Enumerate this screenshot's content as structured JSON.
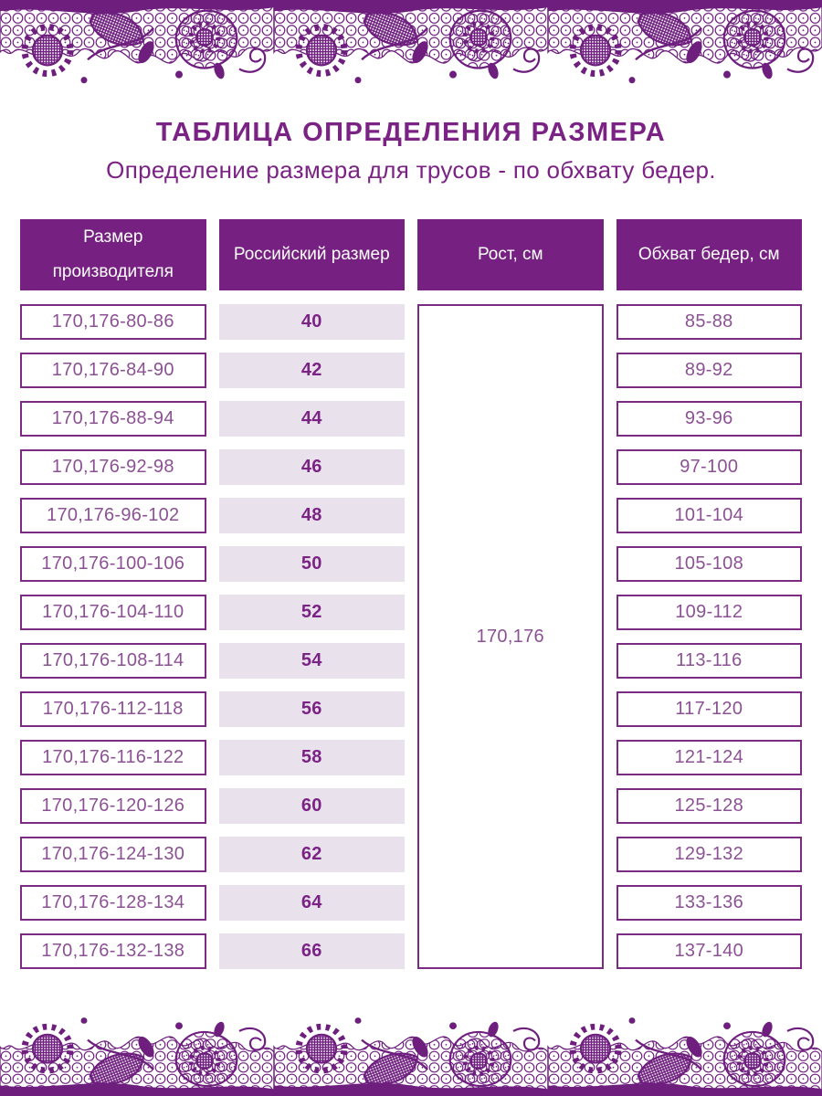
{
  "page": {
    "title": "ТАБЛИЦА ОПРЕДЕЛЕНИЯ РАЗМЕРА",
    "subtitle": "Определение размера для трусов - по обхвату бедер."
  },
  "table": {
    "headers": {
      "manufacturer": "Размер производителя",
      "russian": "Российский размер",
      "height": "Рост, см",
      "hips": "Обхват бедер, см"
    },
    "height_value": "170,176",
    "rows": [
      {
        "manufacturer_size": "170,176-80-86",
        "russian_size": "40",
        "hip_girth": "85-88"
      },
      {
        "manufacturer_size": "170,176-84-90",
        "russian_size": "42",
        "hip_girth": "89-92"
      },
      {
        "manufacturer_size": "170,176-88-94",
        "russian_size": "44",
        "hip_girth": "93-96"
      },
      {
        "manufacturer_size": "170,176-92-98",
        "russian_size": "46",
        "hip_girth": "97-100"
      },
      {
        "manufacturer_size": "170,176-96-102",
        "russian_size": "48",
        "hip_girth": "101-104"
      },
      {
        "manufacturer_size": "170,176-100-106",
        "russian_size": "50",
        "hip_girth": "105-108"
      },
      {
        "manufacturer_size": "170,176-104-110",
        "russian_size": "52",
        "hip_girth": "109-112"
      },
      {
        "manufacturer_size": "170,176-108-114",
        "russian_size": "54",
        "hip_girth": "113-116"
      },
      {
        "manufacturer_size": "170,176-112-118",
        "russian_size": "56",
        "hip_girth": "117-120"
      },
      {
        "manufacturer_size": "170,176-116-122",
        "russian_size": "58",
        "hip_girth": "121-124"
      },
      {
        "manufacturer_size": "170,176-120-126",
        "russian_size": "60",
        "hip_girth": "125-128"
      },
      {
        "manufacturer_size": "170,176-124-130",
        "russian_size": "62",
        "hip_girth": "129-132"
      },
      {
        "manufacturer_size": "170,176-128-134",
        "russian_size": "64",
        "hip_girth": "133-136"
      },
      {
        "manufacturer_size": "170,176-132-138",
        "russian_size": "66",
        "hip_girth": "137-140"
      }
    ]
  },
  "decor": {
    "lace_top": "floral-lace-border",
    "lace_bottom": "floral-lace-border"
  },
  "colors": {
    "primary_purple": "#7B2384",
    "lace_purple": "#6E1F7E",
    "header_bg": "#762081",
    "header_text": "#FFFFFF",
    "cell_border": "#7C2B85",
    "cell_text": "#8C5194",
    "russian_size_bg": "#E9E2ED",
    "russian_size_text": "#7B2384",
    "title_text": "#7B2384"
  }
}
